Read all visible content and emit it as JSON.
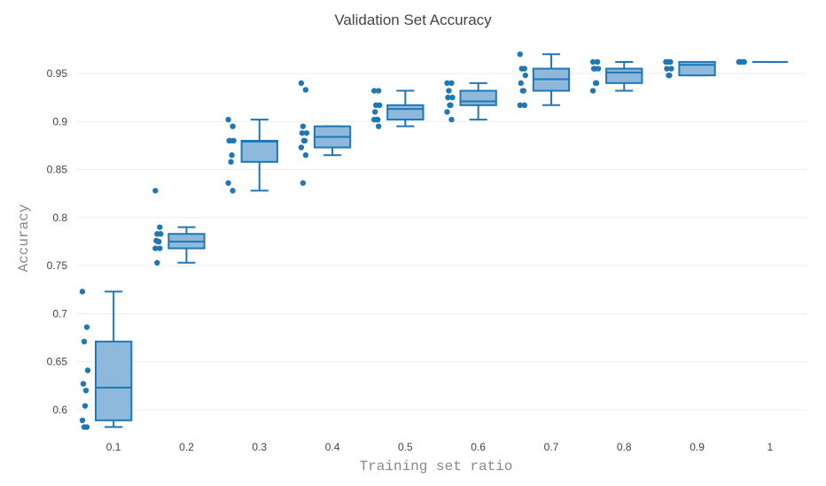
{
  "chart_data": {
    "type": "box",
    "title": "Validation Set Accuracy",
    "xlabel": "Training set ratio",
    "ylabel": "Accuracy",
    "categories": [
      "0.1",
      "0.2",
      "0.3",
      "0.4",
      "0.5",
      "0.6",
      "0.7",
      "0.8",
      "0.9",
      "1"
    ],
    "y_ticks": [
      "0.6",
      "0.65",
      "0.7",
      "0.75",
      "0.8",
      "0.85",
      "0.9",
      "0.95"
    ],
    "ylim": [
      0.575,
      0.985
    ],
    "grid": true,
    "legend": false,
    "colors": {
      "stroke": "#1f77b4",
      "fill": "#8fb9dc",
      "point": "#1f77b4",
      "grid": "#eeeeee",
      "text": "#444444"
    },
    "boxes": [
      {
        "category": "0.1",
        "lower_whisker": 0.582,
        "q1": 0.589,
        "median": 0.623,
        "q3": 0.671,
        "upper_whisker": 0.723,
        "points": [
          0.723,
          0.686,
          0.671,
          0.641,
          0.627,
          0.62,
          0.604,
          0.589,
          0.582,
          0.582
        ]
      },
      {
        "category": "0.2",
        "lower_whisker": 0.753,
        "q1": 0.768,
        "median": 0.775,
        "q3": 0.783,
        "upper_whisker": 0.79,
        "points": [
          0.828,
          0.79,
          0.783,
          0.783,
          0.776,
          0.775,
          0.775,
          0.768,
          0.768,
          0.753
        ]
      },
      {
        "category": "0.3",
        "lower_whisker": 0.828,
        "q1": 0.858,
        "median": 0.879,
        "q3": 0.88,
        "upper_whisker": 0.902,
        "points": [
          0.902,
          0.895,
          0.88,
          0.88,
          0.88,
          0.865,
          0.858,
          0.836,
          0.828
        ]
      },
      {
        "category": "0.4",
        "lower_whisker": 0.865,
        "q1": 0.873,
        "median": 0.884,
        "q3": 0.895,
        "upper_whisker": 0.895,
        "points": [
          0.94,
          0.933,
          0.895,
          0.888,
          0.888,
          0.88,
          0.88,
          0.873,
          0.865,
          0.836
        ]
      },
      {
        "category": "0.5",
        "lower_whisker": 0.895,
        "q1": 0.902,
        "median": 0.913,
        "q3": 0.917,
        "upper_whisker": 0.932,
        "points": [
          0.932,
          0.932,
          0.917,
          0.917,
          0.91,
          0.902,
          0.902,
          0.902,
          0.895
        ]
      },
      {
        "category": "0.6",
        "lower_whisker": 0.902,
        "q1": 0.917,
        "median": 0.921,
        "q3": 0.932,
        "upper_whisker": 0.94,
        "points": [
          0.94,
          0.94,
          0.932,
          0.925,
          0.925,
          0.917,
          0.917,
          0.91,
          0.902
        ]
      },
      {
        "category": "0.7",
        "lower_whisker": 0.917,
        "q1": 0.932,
        "median": 0.944,
        "q3": 0.955,
        "upper_whisker": 0.97,
        "points": [
          0.97,
          0.955,
          0.955,
          0.948,
          0.94,
          0.932,
          0.932,
          0.917,
          0.917
        ]
      },
      {
        "category": "0.8",
        "lower_whisker": 0.932,
        "q1": 0.94,
        "median": 0.951,
        "q3": 0.955,
        "upper_whisker": 0.962,
        "points": [
          0.962,
          0.962,
          0.955,
          0.955,
          0.955,
          0.94,
          0.94,
          0.932
        ]
      },
      {
        "category": "0.9",
        "lower_whisker": 0.948,
        "q1": 0.948,
        "median": 0.959,
        "q3": 0.962,
        "upper_whisker": 0.962,
        "points": [
          0.962,
          0.962,
          0.962,
          0.955,
          0.955,
          0.948,
          0.948
        ]
      },
      {
        "category": "1",
        "lower_whisker": 0.962,
        "q1": 0.962,
        "median": 0.962,
        "q3": 0.962,
        "upper_whisker": 0.962,
        "points": [
          0.962,
          0.962,
          0.962,
          0.962,
          0.962
        ]
      }
    ]
  }
}
